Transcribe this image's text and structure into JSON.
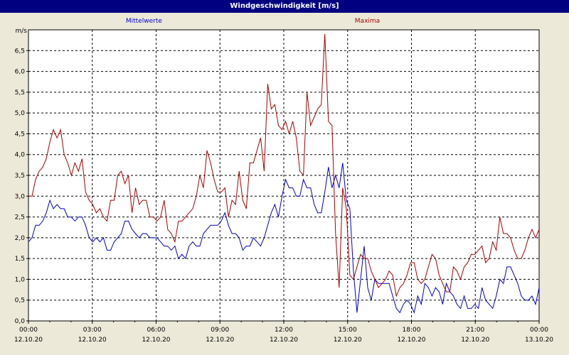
{
  "window": {
    "title": "Windgeschwindigkeit [m/s]"
  },
  "colors": {
    "titlebar": "#000080",
    "series_mean": "#0000cc",
    "series_max": "#aa0000",
    "grid": "#000000",
    "plot_background": "#ffffff"
  },
  "chart_data": {
    "type": "line",
    "title": "Windgeschwindigkeit [m/s]",
    "ylabel": "m/s",
    "xlabel": "",
    "ylim": [
      0,
      7
    ],
    "xlim": [
      0,
      24
    ],
    "grid": true,
    "y_ticks": [
      "0,0",
      "0,5",
      "1,0",
      "1,5",
      "2,0",
      "2,5",
      "3,0",
      "3,5",
      "4,0",
      "4,5",
      "5,0",
      "5,5",
      "6,0",
      "6,5"
    ],
    "x_ticks": [
      {
        "time": "00:00",
        "date": "12.10.20"
      },
      {
        "time": "03:00",
        "date": "12.10.20"
      },
      {
        "time": "06:00",
        "date": "12.10.20"
      },
      {
        "time": "09:00",
        "date": "12.10.20"
      },
      {
        "time": "12:00",
        "date": "12.10.20"
      },
      {
        "time": "15:00",
        "date": "12.10.20"
      },
      {
        "time": "18:00",
        "date": "12.10.20"
      },
      {
        "time": "21:00",
        "date": "12.10.20"
      },
      {
        "time": "00:00",
        "date": "13.10.20"
      }
    ],
    "series": [
      {
        "name": "Mittelwerte",
        "values": [
          1.9,
          2.0,
          2.3,
          2.3,
          2.4,
          2.6,
          2.9,
          2.7,
          2.8,
          2.7,
          2.7,
          2.5,
          2.5,
          2.4,
          2.5,
          2.5,
          2.3,
          2.0,
          1.9,
          2.0,
          1.9,
          2.0,
          1.7,
          1.7,
          1.9,
          2.0,
          2.1,
          2.4,
          2.4,
          2.2,
          2.1,
          2.0,
          2.1,
          2.1,
          2.0,
          2.0,
          2.0,
          1.9,
          1.8,
          1.8,
          1.7,
          1.8,
          1.5,
          1.6,
          1.5,
          1.8,
          1.9,
          1.8,
          1.8,
          2.1,
          2.2,
          2.3,
          2.3,
          2.3,
          2.4,
          2.6,
          2.3,
          2.1,
          2.1,
          2.0,
          1.7,
          1.8,
          1.8,
          2.0,
          1.9,
          1.8,
          2.0,
          2.3,
          2.6,
          2.8,
          2.5,
          3.0,
          3.4,
          3.2,
          3.2,
          3.0,
          3.0,
          3.4,
          3.2,
          3.2,
          2.8,
          2.6,
          2.6,
          3.1,
          3.7,
          3.2,
          3.5,
          3.2,
          3.8,
          2.9,
          2.7,
          1.2,
          0.2,
          1.0,
          1.8,
          0.8,
          0.5,
          1.0,
          0.9,
          0.9,
          0.9,
          0.9,
          0.6,
          0.3,
          0.2,
          0.4,
          0.5,
          0.4,
          0.2,
          0.6,
          0.4,
          0.9,
          0.8,
          0.6,
          0.8,
          0.7,
          0.4,
          0.9,
          0.7,
          0.6,
          0.4,
          0.3,
          0.6,
          0.3,
          0.3,
          0.4,
          0.3,
          0.8,
          0.5,
          0.4,
          0.3,
          0.6,
          1.0,
          0.9,
          1.3,
          1.3,
          1.1,
          0.9,
          0.6,
          0.5,
          0.5,
          0.6,
          0.4,
          0.8
        ]
      },
      {
        "name": "Maxima",
        "values": [
          3.0,
          3.0,
          3.4,
          3.6,
          3.7,
          3.9,
          4.3,
          4.6,
          4.4,
          4.6,
          4.0,
          3.8,
          3.5,
          3.8,
          3.6,
          3.9,
          3.1,
          2.9,
          2.8,
          2.6,
          2.7,
          2.5,
          2.4,
          2.9,
          2.9,
          3.5,
          3.6,
          3.3,
          3.5,
          2.6,
          3.2,
          2.8,
          2.9,
          2.9,
          2.5,
          2.5,
          2.4,
          2.5,
          2.9,
          2.2,
          2.1,
          1.9,
          2.4,
          2.4,
          2.5,
          2.6,
          2.7,
          3.0,
          3.5,
          3.2,
          4.1,
          3.8,
          3.4,
          3.1,
          3.1,
          3.2,
          2.5,
          2.9,
          2.8,
          3.6,
          2.9,
          2.7,
          3.8,
          3.8,
          4.1,
          4.4,
          3.6,
          5.7,
          5.1,
          5.2,
          4.7,
          4.6,
          4.8,
          4.5,
          4.8,
          4.4,
          3.6,
          3.5,
          5.5,
          4.7,
          4.9,
          5.1,
          5.2,
          6.9,
          4.8,
          4.7,
          2.1,
          0.8,
          3.2,
          2.7,
          1.1,
          1.0,
          1.3,
          1.6,
          1.5,
          1.5,
          1.2,
          1.0,
          0.8,
          0.9,
          1.0,
          1.2,
          1.1,
          0.6,
          0.8,
          0.9,
          1.1,
          1.4,
          1.4,
          1.0,
          0.9,
          1.0,
          1.3,
          1.6,
          1.5,
          1.1,
          0.9,
          0.7,
          0.7,
          1.3,
          1.2,
          1.0,
          1.3,
          1.4,
          1.6,
          1.6,
          1.7,
          1.8,
          1.4,
          1.5,
          1.9,
          1.7,
          2.5,
          2.1,
          2.1,
          2.0,
          1.7,
          1.5,
          1.5,
          1.7,
          2.0,
          2.2,
          2.0,
          2.2
        ]
      }
    ]
  }
}
